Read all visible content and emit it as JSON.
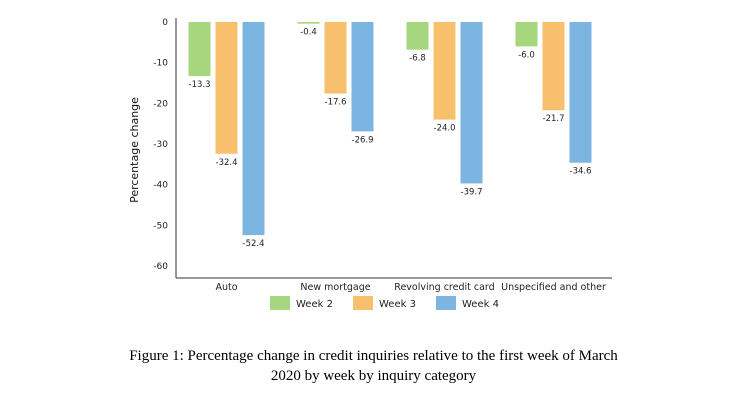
{
  "chart_data": {
    "type": "bar",
    "ylabel": "Percentage change",
    "xlabel": "",
    "ylim": [
      -60,
      0
    ],
    "yticks": [
      0,
      -10,
      -20,
      -30,
      -40,
      -50,
      -60
    ],
    "grid": false,
    "legend_position": "bottom",
    "categories": [
      "Auto",
      "New mortgage",
      "Revolving credit card",
      "Unspecified and other"
    ],
    "series": [
      {
        "name": "Week 2",
        "color": "#a6d67e",
        "values": [
          -13.3,
          -0.4,
          -6.8,
          -6.0
        ],
        "labels": [
          "-13.3",
          "-0.4",
          "-6.8",
          "-6.0"
        ]
      },
      {
        "name": "Week 3",
        "color": "#f8c06d",
        "values": [
          -32.4,
          -17.6,
          -24.0,
          -21.7
        ],
        "labels": [
          "-32.4",
          "-17.6",
          "-24.0",
          "-21.7"
        ]
      },
      {
        "name": "Week 4",
        "color": "#7cb4e2",
        "values": [
          -52.4,
          -26.9,
          -39.7,
          -34.6
        ],
        "labels": [
          "-52.4",
          "-26.9",
          "-39.7",
          "-34.6"
        ]
      }
    ]
  },
  "caption": {
    "line1": "Figure 1: Percentage change in credit inquiries relative to the first week of March",
    "line2": "2020 by week by inquiry category"
  }
}
